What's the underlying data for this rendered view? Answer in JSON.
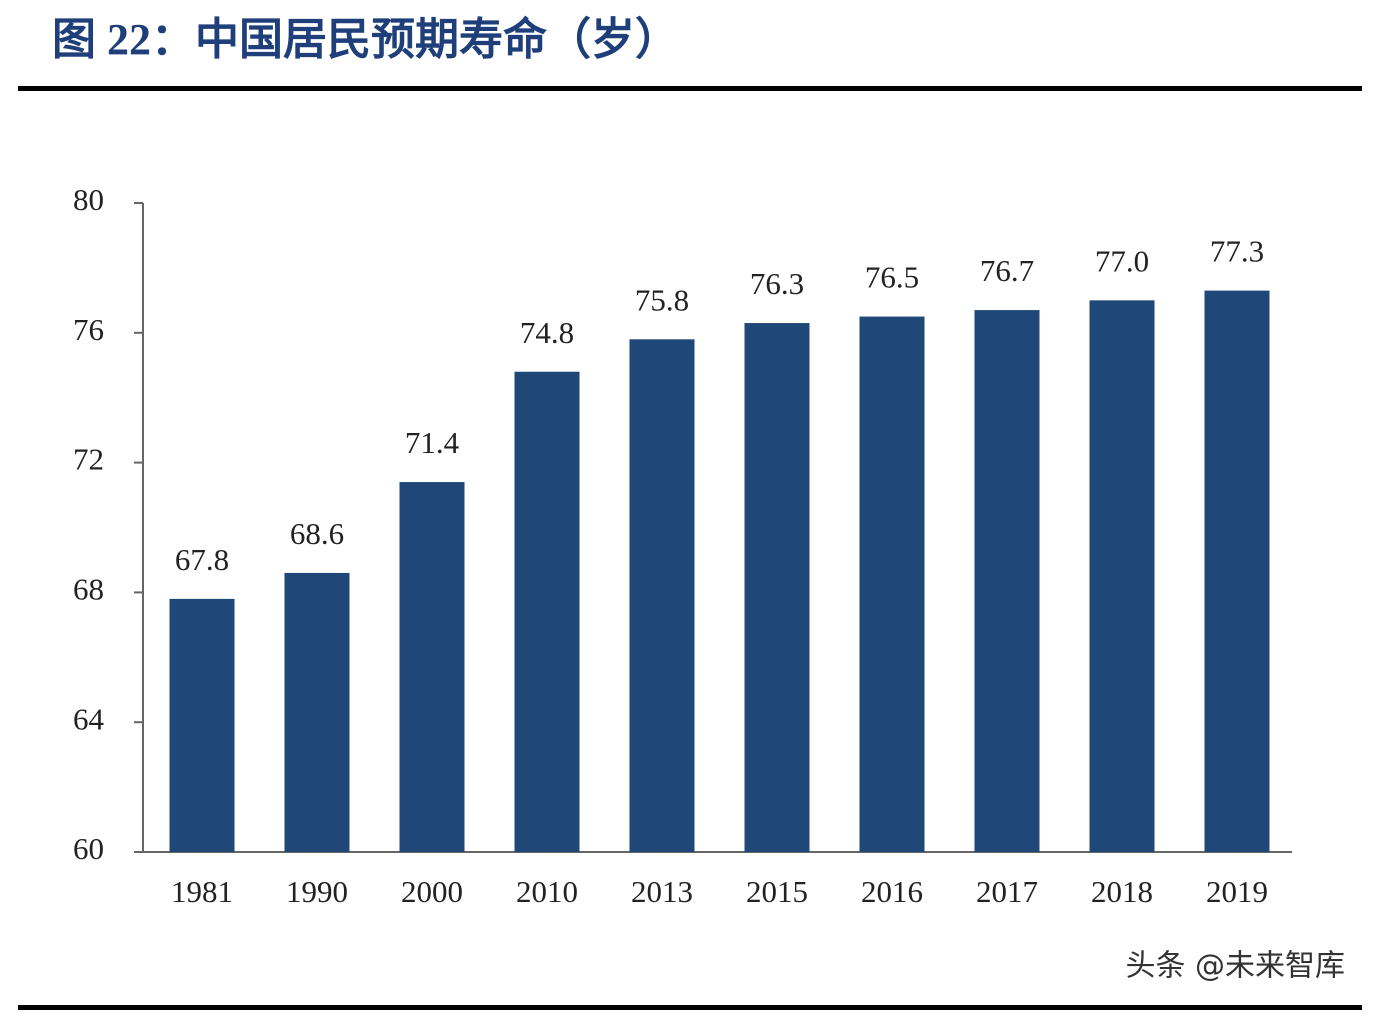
{
  "title": "图 22：中国居民预期寿命（岁）",
  "watermark": "头条 @未来智库",
  "chart_data": {
    "type": "bar",
    "categories": [
      "1981",
      "1990",
      "2000",
      "2010",
      "2013",
      "2015",
      "2016",
      "2017",
      "2018",
      "2019"
    ],
    "values": [
      67.8,
      68.6,
      71.4,
      74.8,
      75.8,
      76.3,
      76.5,
      76.7,
      77.0,
      77.3
    ],
    "value_labels": [
      "67.8",
      "68.6",
      "71.4",
      "74.8",
      "75.8",
      "76.3",
      "76.5",
      "76.7",
      "77.0",
      "77.3"
    ],
    "color": "#1f4778",
    "ylim": [
      60,
      80
    ],
    "yticks": [
      60,
      64,
      68,
      72,
      76,
      80
    ],
    "grid": false
  }
}
